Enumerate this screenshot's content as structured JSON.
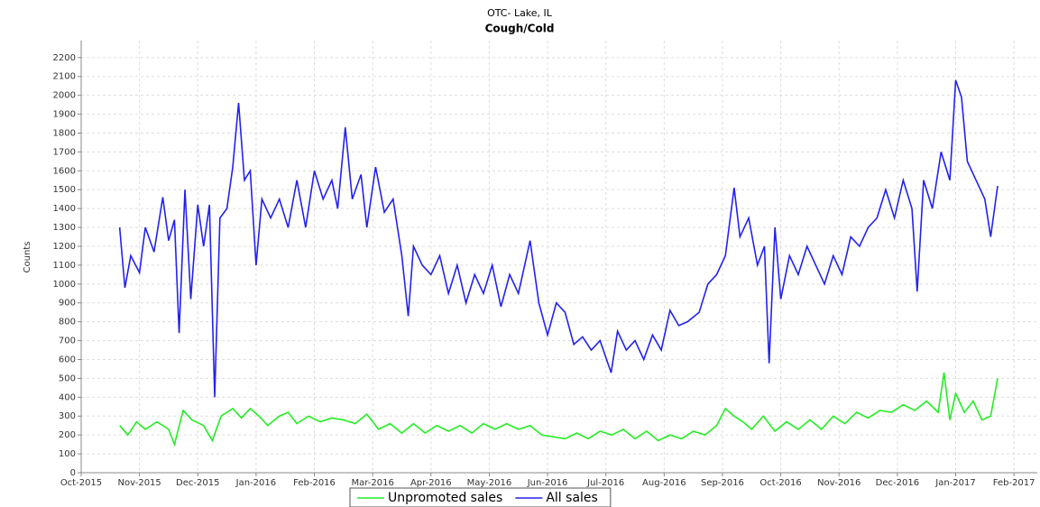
{
  "chart_data": {
    "type": "line",
    "title": "OTC- Lake, IL",
    "subtitle": "Cough/Cold",
    "y_label": "Counts",
    "xlim": [
      0,
      16.4
    ],
    "ylim": [
      0,
      2290
    ],
    "xticks": [
      {
        "value": 0,
        "label": "Oct-2015"
      },
      {
        "value": 1,
        "label": "Nov-2015"
      },
      {
        "value": 2,
        "label": "Dec-2015"
      },
      {
        "value": 3,
        "label": "Jan-2016"
      },
      {
        "value": 4,
        "label": "Feb-2016"
      },
      {
        "value": 5,
        "label": "Mar-2016"
      },
      {
        "value": 6,
        "label": "Apr-2016"
      },
      {
        "value": 7,
        "label": "May-2016"
      },
      {
        "value": 8,
        "label": "Jun-2016"
      },
      {
        "value": 9,
        "label": "Jul-2016"
      },
      {
        "value": 10,
        "label": "Aug-2016"
      },
      {
        "value": 11,
        "label": "Sep-2016"
      },
      {
        "value": 12,
        "label": "Oct-2016"
      },
      {
        "value": 13,
        "label": "Nov-2016"
      },
      {
        "value": 14,
        "label": "Dec-2016"
      },
      {
        "value": 15,
        "label": "Jan-2017"
      },
      {
        "value": 16,
        "label": "Feb-2017"
      }
    ],
    "yticks": [
      0,
      100,
      200,
      300,
      400,
      500,
      600,
      700,
      800,
      900,
      1000,
      1100,
      1200,
      1300,
      1400,
      1500,
      1600,
      1700,
      1800,
      1900,
      2000,
      2100,
      2200
    ],
    "grid": true,
    "legend": "bottom",
    "series": [
      {
        "name": "Unpromoted sales",
        "color": "#22ee22",
        "x": [
          0.66,
          0.8,
          0.95,
          1.1,
          1.3,
          1.5,
          1.6,
          1.75,
          1.9,
          2.1,
          2.25,
          2.4,
          2.6,
          2.75,
          2.9,
          3.05,
          3.2,
          3.4,
          3.55,
          3.7,
          3.9,
          4.1,
          4.3,
          4.5,
          4.7,
          4.9,
          5.1,
          5.3,
          5.5,
          5.7,
          5.9,
          6.1,
          6.3,
          6.5,
          6.7,
          6.9,
          7.1,
          7.3,
          7.5,
          7.7,
          7.9,
          8.1,
          8.3,
          8.5,
          8.7,
          8.9,
          9.1,
          9.3,
          9.5,
          9.7,
          9.9,
          10.1,
          10.3,
          10.5,
          10.7,
          10.9,
          11.05,
          11.2,
          11.35,
          11.5,
          11.7,
          11.9,
          12.1,
          12.3,
          12.5,
          12.7,
          12.9,
          13.1,
          13.3,
          13.5,
          13.7,
          13.9,
          14.1,
          14.3,
          14.5,
          14.7,
          14.8,
          14.9,
          15.0,
          15.15,
          15.3,
          15.45,
          15.6,
          15.72
        ],
        "values": [
          250,
          200,
          270,
          230,
          270,
          230,
          150,
          330,
          280,
          250,
          170,
          300,
          340,
          290,
          340,
          300,
          250,
          300,
          320,
          260,
          300,
          270,
          290,
          280,
          260,
          310,
          230,
          260,
          210,
          260,
          210,
          250,
          220,
          250,
          210,
          260,
          230,
          260,
          230,
          250,
          200,
          190,
          180,
          210,
          180,
          220,
          200,
          230,
          180,
          220,
          170,
          200,
          180,
          220,
          200,
          250,
          340,
          300,
          270,
          230,
          300,
          220,
          270,
          230,
          280,
          230,
          300,
          260,
          320,
          290,
          330,
          320,
          360,
          330,
          380,
          320,
          530,
          280,
          420,
          320,
          380,
          280,
          300,
          500
        ]
      },
      {
        "name": "All sales",
        "color": "#2222ee",
        "x": [
          0.66,
          0.75,
          0.85,
          1.0,
          1.1,
          1.25,
          1.4,
          1.5,
          1.6,
          1.68,
          1.78,
          1.88,
          2.0,
          2.1,
          2.2,
          2.29,
          2.38,
          2.5,
          2.6,
          2.7,
          2.8,
          2.9,
          3.0,
          3.1,
          3.25,
          3.4,
          3.55,
          3.7,
          3.85,
          4.0,
          4.15,
          4.3,
          4.4,
          4.53,
          4.65,
          4.8,
          4.9,
          5.05,
          5.2,
          5.35,
          5.5,
          5.61,
          5.7,
          5.85,
          6.0,
          6.15,
          6.3,
          6.45,
          6.6,
          6.75,
          6.9,
          7.05,
          7.2,
          7.35,
          7.5,
          7.7,
          7.85,
          8.0,
          8.15,
          8.3,
          8.45,
          8.6,
          8.75,
          8.9,
          9.09,
          9.2,
          9.35,
          9.5,
          9.65,
          9.8,
          9.95,
          10.1,
          10.25,
          10.4,
          10.6,
          10.75,
          10.9,
          11.05,
          11.2,
          11.3,
          11.45,
          11.6,
          11.72,
          11.8,
          11.9,
          12.0,
          12.15,
          12.3,
          12.45,
          12.6,
          12.75,
          12.9,
          13.05,
          13.2,
          13.35,
          13.5,
          13.65,
          13.8,
          13.95,
          14.1,
          14.25,
          14.34,
          14.45,
          14.6,
          14.75,
          14.9,
          15.0,
          15.1,
          15.2,
          15.35,
          15.5,
          15.6,
          15.72
        ],
        "values": [
          1300,
          980,
          1150,
          1060,
          1300,
          1170,
          1460,
          1230,
          1340,
          740,
          1500,
          920,
          1420,
          1200,
          1420,
          400,
          1350,
          1400,
          1620,
          1960,
          1550,
          1600,
          1100,
          1450,
          1350,
          1450,
          1300,
          1550,
          1300,
          1600,
          1450,
          1550,
          1400,
          1830,
          1450,
          1580,
          1300,
          1620,
          1380,
          1450,
          1150,
          830,
          1200,
          1100,
          1050,
          1150,
          950,
          1100,
          900,
          1050,
          950,
          1100,
          880,
          1050,
          950,
          1230,
          900,
          730,
          900,
          850,
          680,
          720,
          650,
          700,
          530,
          750,
          650,
          700,
          600,
          730,
          650,
          860,
          780,
          800,
          850,
          1000,
          1050,
          1150,
          1510,
          1250,
          1350,
          1100,
          1200,
          580,
          1300,
          920,
          1150,
          1050,
          1200,
          1100,
          1000,
          1150,
          1050,
          1250,
          1200,
          1300,
          1350,
          1500,
          1350,
          1550,
          1400,
          960,
          1550,
          1400,
          1700,
          1550,
          2080,
          1990,
          1650,
          1550,
          1450,
          1250,
          1520
        ]
      }
    ]
  }
}
